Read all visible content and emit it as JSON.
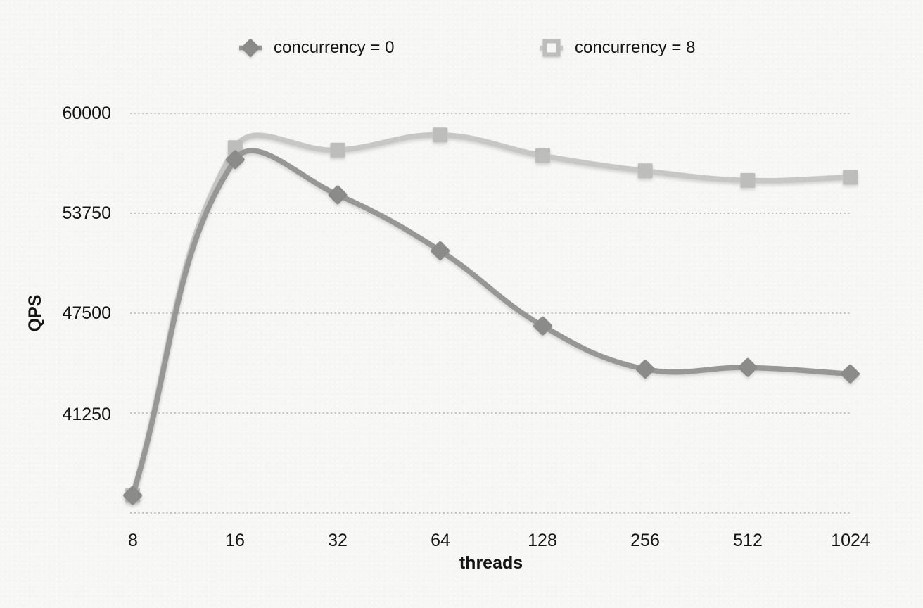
{
  "colors": {
    "background": "#f6f6f4",
    "text": "#151515",
    "grid": "#b1b1b0"
  },
  "chart_data": {
    "type": "line",
    "title": "",
    "xlabel": "threads",
    "ylabel": "QPS",
    "categories": [
      "8",
      "16",
      "32",
      "64",
      "128",
      "256",
      "512",
      "1024"
    ],
    "x_scale": "categorical (powers of 2)",
    "ylim": [
      35000,
      60000
    ],
    "ytick_values": [
      60000,
      53750,
      47500,
      41250
    ],
    "ytick_labels": [
      "60000",
      "53750",
      "47500",
      "41250"
    ],
    "grid": "dotted horizontal gridlines plus dotted baseline",
    "legend_position": "top",
    "series": [
      {
        "name": "concurrency = 0",
        "marker": "diamond",
        "line_color": "#979796",
        "marker_color": "#8b8b8a",
        "values": [
          36100,
          57100,
          54900,
          51400,
          46700,
          44000,
          44100,
          43700
        ]
      },
      {
        "name": "concurrency = 8",
        "marker": "square",
        "line_color": "#c7c7c5",
        "marker_color": "#bdbdbc",
        "values": [
          36100,
          57850,
          57700,
          58650,
          57350,
          56400,
          55800,
          56000
        ]
      }
    ]
  }
}
